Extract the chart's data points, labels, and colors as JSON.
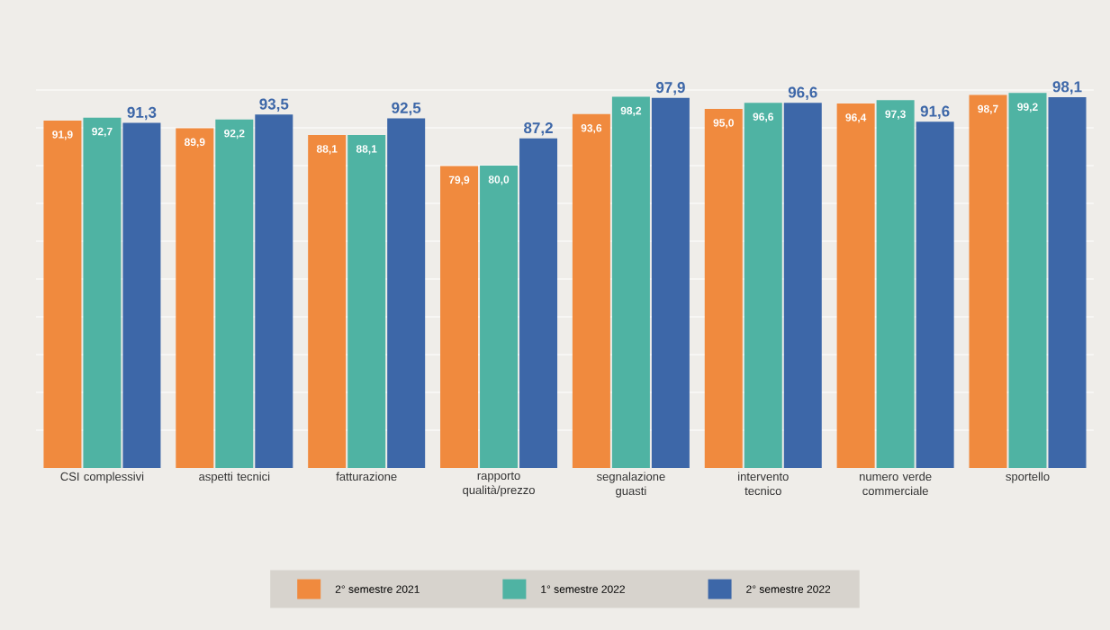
{
  "chart_data": {
    "type": "bar",
    "categories": [
      "CSI complessivi",
      "aspetti tecnici",
      "fatturazione",
      "rapporto qualità/prezzo",
      "segnalazione guasti",
      "intervento tecnico",
      "numero verde commerciale",
      "sportello"
    ],
    "series": [
      {
        "name": "2° semestre 2021",
        "color": "#f08a3e",
        "values": [
          91.9,
          89.9,
          88.1,
          79.9,
          93.6,
          95.0,
          96.4,
          98.7
        ],
        "value_labels": [
          "91,9",
          "89,9",
          "88,1",
          "79,9",
          "93,6",
          "95,0",
          "96,4",
          "98,7"
        ]
      },
      {
        "name": "1° semestre 2022",
        "color": "#4fb3a3",
        "values": [
          92.7,
          92.2,
          88.1,
          80.0,
          98.2,
          96.6,
          97.3,
          99.2
        ],
        "value_labels": [
          "92,7",
          "92,2",
          "88,1",
          "80,0",
          "98,2",
          "96,6",
          "97,3",
          "99,2"
        ]
      },
      {
        "name": "2° semestre 2022",
        "color": "#3d67a8",
        "values": [
          91.3,
          93.5,
          92.5,
          87.2,
          97.9,
          96.6,
          91.6,
          98.1
        ],
        "value_labels": [
          "91,3",
          "93,5",
          "92,5",
          "87,2",
          "97,9",
          "96,6",
          "91,6",
          "98,1"
        ]
      }
    ],
    "ylim": [
      0,
      100
    ],
    "yticks": [
      {
        "value": 10,
        "label": null
      },
      {
        "value": 20,
        "label": null
      },
      {
        "value": 30,
        "label": null
      },
      {
        "value": 40,
        "label": null
      },
      {
        "value": 50,
        "label": null
      },
      {
        "value": 60,
        "label": null
      },
      {
        "value": 70,
        "label": null
      },
      {
        "value": 80,
        "label": null
      },
      {
        "value": 90,
        "label": null
      },
      {
        "value": 100,
        "label": null
      }
    ],
    "grid": "y",
    "legend": "bottom",
    "tick_labels": "x"
  }
}
